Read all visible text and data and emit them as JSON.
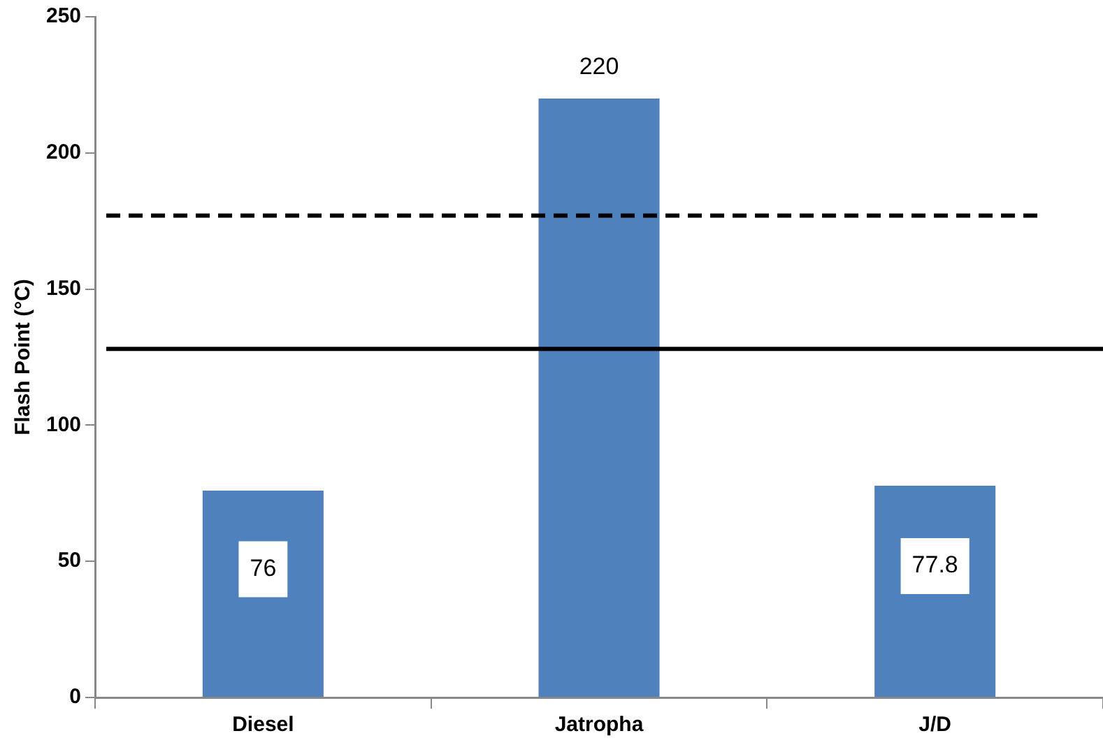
{
  "chart_data": {
    "type": "bar",
    "ylabel": "Flash Point (°C)",
    "categories": [
      "Diesel",
      "Jatropha",
      "J/D"
    ],
    "values": [
      76,
      220,
      77.8
    ],
    "color": "#4f81bd",
    "ylim": [
      0,
      250
    ],
    "yticks": [
      0,
      50,
      100,
      150,
      200,
      250
    ],
    "grid": false,
    "legend": false,
    "data_labels": true,
    "ref_lines": [
      {
        "axis": "y",
        "value": 177,
        "color": "#000000",
        "line_style": "dashed"
      },
      {
        "axis": "y",
        "value": 128,
        "color": "#000000",
        "line_style": "solid"
      }
    ]
  }
}
